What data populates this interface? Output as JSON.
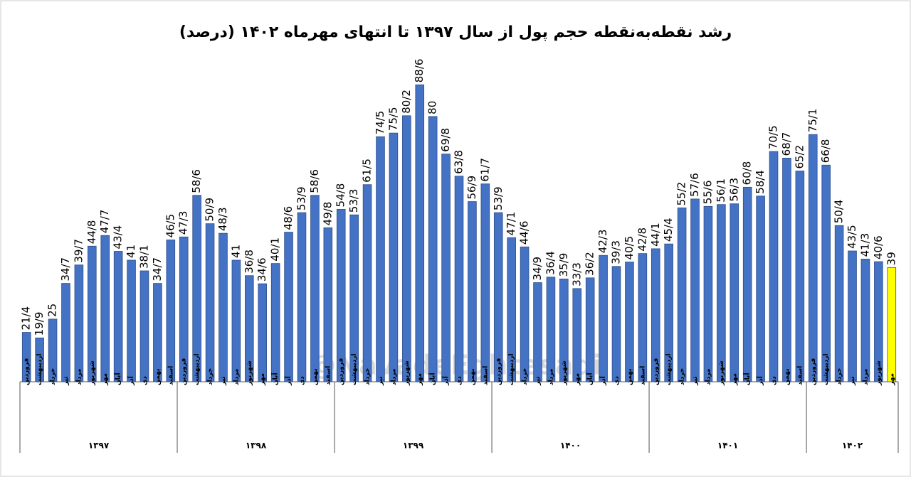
{
  "chart_data": {
    "type": "bar",
    "title": "رشد نقطه‌به‌نقطه حجم پول از سال ۱۳۹۷ تا انتهای مهرماه ۱۴۰۲ (درصد)",
    "watermark": "@NavadeEghtesadi",
    "ylim": [
      8,
      90
    ],
    "groups": [
      {
        "name": "۱۳۹۷",
        "categories": [
          "فروردین",
          "اردیبهشت",
          "خرداد",
          "تیر",
          "مرداد",
          "شهریور",
          "مهر",
          "آبان",
          "آذر",
          "دی",
          "بهمن",
          "اسفند"
        ],
        "values": [
          21.4,
          19.9,
          25,
          34.7,
          39.7,
          44.8,
          47.7,
          43.4,
          41,
          38.1,
          34.7,
          46.5
        ],
        "value_labels": [
          "21/4",
          "19/9",
          "25",
          "34/7",
          "39/7",
          "44/8",
          "47/7",
          "43/4",
          "41",
          "38/1",
          "34/7",
          "46/5"
        ],
        "colors": [
          "#4472c4",
          "#4472c4",
          "#4472c4",
          "#4472c4",
          "#4472c4",
          "#4472c4",
          "#4472c4",
          "#4472c4",
          "#4472c4",
          "#4472c4",
          "#4472c4",
          "#4472c4"
        ]
      },
      {
        "name": "۱۳۹۸",
        "categories": [
          "فروردین",
          "اردیبهشت",
          "خرداد",
          "تیر",
          "مرداد",
          "شهریور",
          "مهر",
          "آبان",
          "آذر",
          "دی",
          "بهمن",
          "اسفند"
        ],
        "values": [
          47.3,
          58.6,
          50.9,
          48.3,
          41,
          36.8,
          34.6,
          40.1,
          48.6,
          53.9,
          58.6,
          49.8
        ],
        "value_labels": [
          "47/3",
          "58/6",
          "50/9",
          "48/3",
          "41",
          "36/8",
          "34/6",
          "40/1",
          "48/6",
          "53/9",
          "58/6",
          "49/8"
        ],
        "colors": [
          "#4472c4",
          "#4472c4",
          "#4472c4",
          "#4472c4",
          "#4472c4",
          "#4472c4",
          "#4472c4",
          "#4472c4",
          "#4472c4",
          "#4472c4",
          "#4472c4",
          "#4472c4"
        ]
      },
      {
        "name": "۱۳۹۹",
        "categories": [
          "فروردین",
          "اردیبهشت",
          "خرداد",
          "تیر",
          "مرداد",
          "شهریور",
          "مهر",
          "آبان",
          "آذر",
          "دی",
          "بهمن",
          "اسفند"
        ],
        "values": [
          54.8,
          53.3,
          61.5,
          74.5,
          75.5,
          80.2,
          88.6,
          80,
          69.8,
          63.8,
          56.9,
          61.7
        ],
        "value_labels": [
          "54/8",
          "53/3",
          "61/5",
          "74/5",
          "75/5",
          "80/2",
          "88/6",
          "80",
          "69/8",
          "63/8",
          "56/9",
          "61/7"
        ],
        "colors": [
          "#4472c4",
          "#4472c4",
          "#4472c4",
          "#4472c4",
          "#4472c4",
          "#4472c4",
          "#4472c4",
          "#4472c4",
          "#4472c4",
          "#4472c4",
          "#4472c4",
          "#4472c4"
        ]
      },
      {
        "name": "۱۴۰۰",
        "categories": [
          "فروردین",
          "اردیبهشت",
          "خرداد",
          "تیر",
          "مرداد",
          "شهریور",
          "مهر",
          "آبان",
          "آذر",
          "دی",
          "بهمن",
          "اسفند"
        ],
        "values": [
          53.9,
          47.1,
          44.6,
          34.9,
          36.4,
          35.9,
          33.3,
          36.2,
          42.3,
          39.3,
          40.5,
          42.8
        ],
        "value_labels": [
          "53/9",
          "47/1",
          "44/6",
          "34/9",
          "36/4",
          "35/9",
          "33/3",
          "36/2",
          "42/3",
          "39/3",
          "40/5",
          "42/8"
        ],
        "colors": [
          "#4472c4",
          "#4472c4",
          "#4472c4",
          "#4472c4",
          "#4472c4",
          "#4472c4",
          "#4472c4",
          "#4472c4",
          "#4472c4",
          "#4472c4",
          "#4472c4",
          "#4472c4"
        ]
      },
      {
        "name": "۱۴۰۱",
        "categories": [
          "فروردین",
          "اردیبهشت",
          "خرداد",
          "تیر",
          "مرداد",
          "شهریور",
          "مهر",
          "آبان",
          "آذر",
          "دی",
          "بهمن",
          "اسفند"
        ],
        "values": [
          44.1,
          45.4,
          55.2,
          57.6,
          55.6,
          56.1,
          56.3,
          60.8,
          58.4,
          70.5,
          68.7,
          65.2
        ],
        "value_labels": [
          "44/1",
          "45/4",
          "55/2",
          "57/6",
          "55/6",
          "56/1",
          "56/3",
          "60/8",
          "58/4",
          "70/5",
          "68/7",
          "65/2"
        ],
        "colors": [
          "#4472c4",
          "#4472c4",
          "#4472c4",
          "#4472c4",
          "#4472c4",
          "#4472c4",
          "#4472c4",
          "#4472c4",
          "#4472c4",
          "#4472c4",
          "#4472c4",
          "#4472c4"
        ]
      },
      {
        "name": "۱۴۰۲",
        "categories": [
          "فروردین",
          "اردیبهشت",
          "خرداد",
          "تیر",
          "مرداد",
          "شهریور",
          "مهر"
        ],
        "values": [
          75.1,
          66.8,
          50.4,
          43.5,
          41.3,
          40.6,
          39
        ],
        "value_labels": [
          "75/1",
          "66/8",
          "50/4",
          "43/5",
          "41/3",
          "40/6",
          "39"
        ],
        "colors": [
          "#4472c4",
          "#4472c4",
          "#4472c4",
          "#4472c4",
          "#4472c4",
          "#4472c4",
          "#ffff00"
        ]
      }
    ]
  }
}
